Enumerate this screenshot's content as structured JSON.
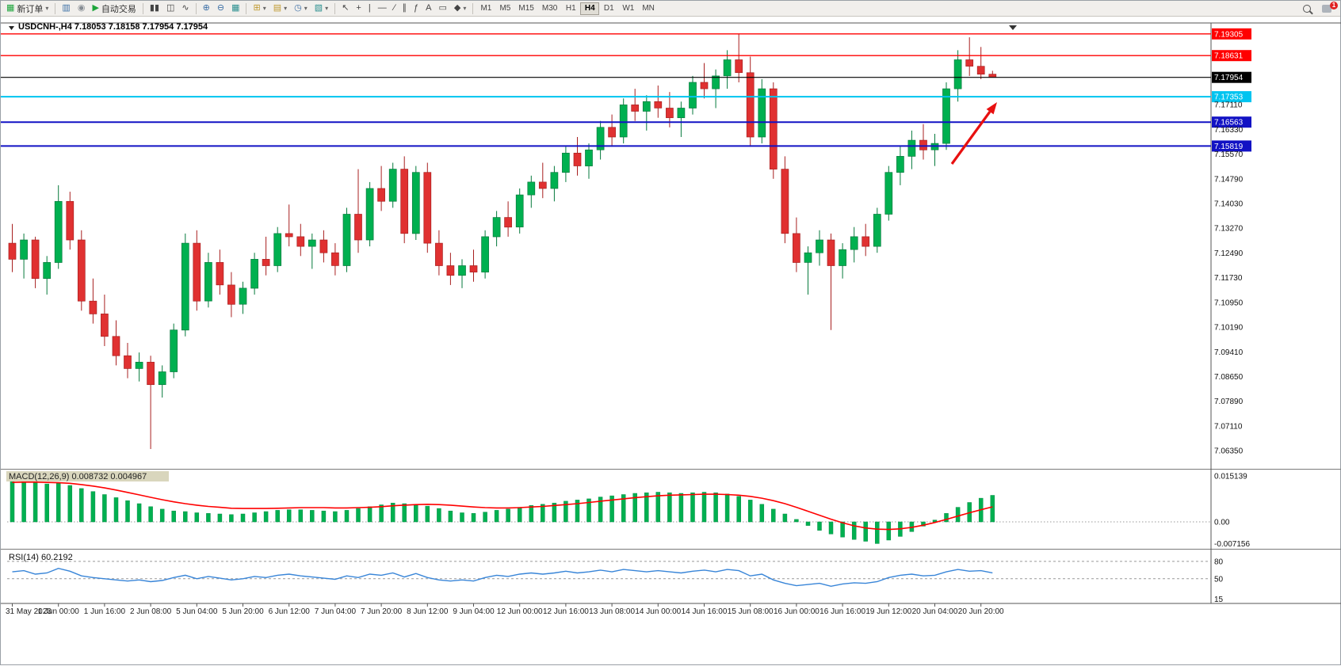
{
  "toolbar": {
    "new_order": "新订单",
    "autotrading": "自动交易",
    "timeframes": [
      "M1",
      "M5",
      "M15",
      "M30",
      "H1",
      "H4",
      "D1",
      "W1",
      "MN"
    ],
    "active_timeframe": "H4",
    "notification_count": "1"
  },
  "icons": {
    "caret": "▾",
    "new_order": "▦",
    "chart_window": "▥",
    "sound": "◉",
    "play": "▶",
    "bars": "▮▮",
    "candles": "◫",
    "linechart": "∿",
    "zoom_in": "⊕",
    "zoom_out": "⊖",
    "tile": "▦",
    "new_chart": "⊞",
    "profiles": "▤",
    "clock": "◷",
    "template": "▧",
    "cursor": "↖",
    "crosshair": "+",
    "vline": "|",
    "hline": "—",
    "trendline": "∕",
    "channel": "∥",
    "fibo": "ƒ",
    "text_tool": "A",
    "label_tool": "▭",
    "shapes": "◆"
  },
  "chart": {
    "title": "USDCNH-,H4 7.18053 7.18158 7.17954 7.17954",
    "symbol": "USDCNH-",
    "period": "H4",
    "ohlc": {
      "open": "7.18053",
      "high": "7.18158",
      "low": "7.17954",
      "close": "7.17954"
    },
    "current_price": "7.17954",
    "price_scale_labels": [
      "7.17110",
      "7.16330",
      "7.15570",
      "7.14790",
      "7.14030",
      "7.13270",
      "7.12490",
      "7.11730",
      "7.10950",
      "7.10190",
      "7.09410",
      "7.08650",
      "7.07890",
      "7.07110",
      "7.06350"
    ]
  },
  "macd_panel": {
    "label": "MACD(12,26,9) 0.008732 0.004967",
    "scale_labels": [
      "0.015139",
      "0.00",
      "-0.007156"
    ]
  },
  "rsi_panel": {
    "label": "RSI(14) 60.2192",
    "scale_labels": [
      "80",
      "50",
      "15"
    ]
  },
  "chart_data": {
    "type": "candlestick",
    "symbol": "USDCNH-",
    "timeframe": "H4",
    "title": "USDCNH-,H4 7.18053 7.18158 7.17954 7.17954",
    "price_range": [
      7.0586,
      7.1965
    ],
    "up_color": "#00b050",
    "down_color": "#e03131",
    "x_label_every_n_candles": 4,
    "x_labels": [
      "31 May 2023",
      "1 Jun 00:00",
      "1 Jun 16:00",
      "2 Jun 08:00",
      "5 Jun 04:00",
      "5 Jun 20:00",
      "6 Jun 12:00",
      "7 Jun 04:00",
      "7 Jun 20:00",
      "8 Jun 12:00",
      "9 Jun 04:00",
      "12 Jun 00:00",
      "12 Jun 16:00",
      "13 Jun 08:00",
      "14 Jun 00:00",
      "14 Jun 16:00",
      "15 Jun 08:00",
      "16 Jun 00:00",
      "16 Jun 16:00",
      "19 Jun 12:00",
      "20 Jun 04:00",
      "20 Jun 20:00"
    ],
    "horizontal_lines": [
      {
        "price": 7.19305,
        "label": "7.19305",
        "color": "#ff0000",
        "width": 1.4,
        "name": "resistance-line-upper"
      },
      {
        "price": 7.18631,
        "label": "7.18631",
        "color": "#ff0000",
        "width": 1.4,
        "name": "resistance-line-lower"
      },
      {
        "price": 7.17954,
        "label": "7.17954",
        "color": "#000000",
        "width": 1.1,
        "name": "last-price-line"
      },
      {
        "price": 7.17353,
        "label": "7.17353",
        "color": "#00c4f0",
        "width": 2.0,
        "name": "support-line-cyan"
      },
      {
        "price": 7.16563,
        "label": "7.16563",
        "color": "#1212c4",
        "width": 2.0,
        "name": "support-line-blue-upper"
      },
      {
        "price": 7.15819,
        "label": "7.15819",
        "color": "#1212c4",
        "width": 2.0,
        "name": "support-line-blue-lower"
      }
    ],
    "annotations": [
      {
        "type": "arrow",
        "color": "#e81010",
        "from_xy": [
          1200,
          206
        ],
        "to_xy": [
          1257,
          128
        ]
      }
    ],
    "candles": [
      [
        7.128,
        7.134,
        7.119,
        7.123
      ],
      [
        7.123,
        7.131,
        7.117,
        7.129
      ],
      [
        7.129,
        7.13,
        7.114,
        7.117
      ],
      [
        7.117,
        7.124,
        7.112,
        7.122
      ],
      [
        7.122,
        7.146,
        7.12,
        7.141
      ],
      [
        7.141,
        7.144,
        7.126,
        7.129
      ],
      [
        7.129,
        7.132,
        7.107,
        7.11
      ],
      [
        7.11,
        7.117,
        7.103,
        7.106
      ],
      [
        7.106,
        7.112,
        7.096,
        7.099
      ],
      [
        7.099,
        7.104,
        7.09,
        7.093
      ],
      [
        7.093,
        7.097,
        7.086,
        7.089
      ],
      [
        7.089,
        7.094,
        7.085,
        7.091
      ],
      [
        7.091,
        7.093,
        7.064,
        7.084
      ],
      [
        7.084,
        7.09,
        7.08,
        7.088
      ],
      [
        7.088,
        7.103,
        7.086,
        7.101
      ],
      [
        7.101,
        7.131,
        7.099,
        7.128
      ],
      [
        7.128,
        7.132,
        7.107,
        7.11
      ],
      [
        7.11,
        7.125,
        7.108,
        7.122
      ],
      [
        7.122,
        7.126,
        7.112,
        7.115
      ],
      [
        7.115,
        7.119,
        7.105,
        7.109
      ],
      [
        7.109,
        7.116,
        7.106,
        7.114
      ],
      [
        7.114,
        7.125,
        7.112,
        7.123
      ],
      [
        7.123,
        7.13,
        7.118,
        7.121
      ],
      [
        7.121,
        7.133,
        7.119,
        7.131
      ],
      [
        7.131,
        7.14,
        7.127,
        7.13
      ],
      [
        7.13,
        7.134,
        7.124,
        7.127
      ],
      [
        7.127,
        7.131,
        7.12,
        7.129
      ],
      [
        7.129,
        7.132,
        7.122,
        7.125
      ],
      [
        7.125,
        7.128,
        7.118,
        7.121
      ],
      [
        7.121,
        7.139,
        7.119,
        7.137
      ],
      [
        7.137,
        7.151,
        7.125,
        7.129
      ],
      [
        7.129,
        7.147,
        7.127,
        7.145
      ],
      [
        7.145,
        7.152,
        7.138,
        7.141
      ],
      [
        7.141,
        7.153,
        7.139,
        7.151
      ],
      [
        7.151,
        7.155,
        7.128,
        7.131
      ],
      [
        7.131,
        7.152,
        7.129,
        7.15
      ],
      [
        7.15,
        7.153,
        7.125,
        7.128
      ],
      [
        7.128,
        7.132,
        7.118,
        7.121
      ],
      [
        7.121,
        7.125,
        7.115,
        7.118
      ],
      [
        7.118,
        7.123,
        7.114,
        7.121
      ],
      [
        7.121,
        7.126,
        7.116,
        7.119
      ],
      [
        7.119,
        7.132,
        7.117,
        7.13
      ],
      [
        7.13,
        7.138,
        7.127,
        7.136
      ],
      [
        7.136,
        7.141,
        7.13,
        7.133
      ],
      [
        7.133,
        7.145,
        7.131,
        7.143
      ],
      [
        7.143,
        7.149,
        7.139,
        7.147
      ],
      [
        7.147,
        7.153,
        7.142,
        7.145
      ],
      [
        7.145,
        7.152,
        7.141,
        7.15
      ],
      [
        7.15,
        7.158,
        7.147,
        7.156
      ],
      [
        7.156,
        7.161,
        7.149,
        7.152
      ],
      [
        7.152,
        7.159,
        7.148,
        7.157
      ],
      [
        7.157,
        7.166,
        7.154,
        7.164
      ],
      [
        7.164,
        7.168,
        7.158,
        7.161
      ],
      [
        7.161,
        7.173,
        7.159,
        7.171
      ],
      [
        7.171,
        7.176,
        7.166,
        7.169
      ],
      [
        7.169,
        7.174,
        7.163,
        7.172
      ],
      [
        7.172,
        7.177,
        7.167,
        7.17
      ],
      [
        7.17,
        7.175,
        7.164,
        7.167
      ],
      [
        7.167,
        7.172,
        7.161,
        7.17
      ],
      [
        7.17,
        7.18,
        7.168,
        7.178
      ],
      [
        7.178,
        7.184,
        7.173,
        7.176
      ],
      [
        7.176,
        7.182,
        7.17,
        7.18
      ],
      [
        7.18,
        7.188,
        7.176,
        7.185
      ],
      [
        7.185,
        7.193,
        7.178,
        7.181
      ],
      [
        7.181,
        7.186,
        7.158,
        7.161
      ],
      [
        7.161,
        7.179,
        7.159,
        7.176
      ],
      [
        7.176,
        7.178,
        7.148,
        7.151
      ],
      [
        7.151,
        7.155,
        7.128,
        7.131
      ],
      [
        7.131,
        7.136,
        7.119,
        7.122
      ],
      [
        7.122,
        7.127,
        7.112,
        7.125
      ],
      [
        7.125,
        7.132,
        7.121,
        7.129
      ],
      [
        7.129,
        7.131,
        7.101,
        7.121
      ],
      [
        7.121,
        7.128,
        7.117,
        7.126
      ],
      [
        7.126,
        7.133,
        7.122,
        7.13
      ],
      [
        7.13,
        7.134,
        7.124,
        7.127
      ],
      [
        7.127,
        7.139,
        7.125,
        7.137
      ],
      [
        7.137,
        7.152,
        7.135,
        7.15
      ],
      [
        7.15,
        7.158,
        7.146,
        7.155
      ],
      [
        7.155,
        7.163,
        7.151,
        7.16
      ],
      [
        7.16,
        7.165,
        7.154,
        7.157
      ],
      [
        7.157,
        7.162,
        7.152,
        7.159
      ],
      [
        7.159,
        7.178,
        7.157,
        7.176
      ],
      [
        7.176,
        7.188,
        7.172,
        7.185
      ],
      [
        7.185,
        7.192,
        7.18,
        7.183
      ],
      [
        7.183,
        7.189,
        7.179,
        7.18053
      ],
      [
        7.18053,
        7.18158,
        7.17954,
        7.17954
      ]
    ],
    "indicators": [
      {
        "type": "macd",
        "fast": 12,
        "slow": 26,
        "signal_period": 9,
        "current_macd": 0.008732,
        "current_signal": 0.004967,
        "range": [
          -0.007156,
          0.015139
        ],
        "scale_labels": [
          "0.015139",
          "0.00",
          "-0.007156"
        ],
        "histogram": [
          0.014,
          0.0151,
          0.013,
          0.0125,
          0.0128,
          0.012,
          0.011,
          0.01,
          0.009,
          0.008,
          0.007,
          0.006,
          0.005,
          0.0042,
          0.0036,
          0.0034,
          0.003,
          0.0028,
          0.0026,
          0.0024,
          0.0026,
          0.003,
          0.0034,
          0.0038,
          0.004,
          0.004,
          0.0038,
          0.0036,
          0.0034,
          0.0038,
          0.0044,
          0.005,
          0.0056,
          0.0062,
          0.006,
          0.0058,
          0.0052,
          0.0044,
          0.0036,
          0.003,
          0.0028,
          0.0032,
          0.0038,
          0.0042,
          0.0048,
          0.0054,
          0.0058,
          0.0062,
          0.0068,
          0.0072,
          0.0076,
          0.0082,
          0.0086,
          0.009,
          0.0094,
          0.0096,
          0.0098,
          0.0096,
          0.0094,
          0.0096,
          0.0098,
          0.0096,
          0.0092,
          0.0084,
          0.0072,
          0.0058,
          0.0042,
          0.0026,
          0.0008,
          -0.0012,
          -0.0028,
          -0.004,
          -0.005,
          -0.0058,
          -0.0064,
          -0.00715,
          -0.006,
          -0.0048,
          -0.0032,
          -0.0014,
          0.0006,
          0.0028,
          0.0048,
          0.0064,
          0.0078,
          0.008732
        ],
        "signal": [
          0.013,
          0.0131,
          0.0131,
          0.013,
          0.0129,
          0.0127,
          0.0123,
          0.0118,
          0.0112,
          0.0105,
          0.0097,
          0.0089,
          0.0081,
          0.0073,
          0.0066,
          0.006,
          0.0055,
          0.0051,
          0.0048,
          0.0045,
          0.0044,
          0.0044,
          0.0044,
          0.0045,
          0.0046,
          0.0047,
          0.0047,
          0.0047,
          0.0046,
          0.0046,
          0.0047,
          0.0048,
          0.005,
          0.0053,
          0.0055,
          0.0057,
          0.0058,
          0.0057,
          0.0055,
          0.0052,
          0.0049,
          0.0047,
          0.0046,
          0.0046,
          0.0047,
          0.0049,
          0.0051,
          0.0054,
          0.0057,
          0.006,
          0.0064,
          0.0068,
          0.0072,
          0.0076,
          0.008,
          0.0083,
          0.0086,
          0.0088,
          0.0089,
          0.009,
          0.0091,
          0.0091,
          0.009,
          0.0088,
          0.0084,
          0.0078,
          0.007,
          0.006,
          0.0048,
          0.0035,
          0.0022,
          0.0009,
          -0.0003,
          -0.0013,
          -0.002,
          -0.0024,
          -0.0025,
          -0.0023,
          -0.0018,
          -0.0011,
          -0.0002,
          0.0008,
          0.0019,
          0.003,
          0.004,
          0.004967
        ]
      },
      {
        "type": "rsi",
        "period": 14,
        "current": 60.2192,
        "levels_dashed": [
          80,
          50
        ],
        "scale_labels": [
          "80",
          "50",
          "15"
        ],
        "values": [
          62,
          64,
          58,
          60,
          68,
          63,
          55,
          52,
          50,
          48,
          46,
          48,
          45,
          47,
          52,
          56,
          50,
          54,
          51,
          48,
          50,
          54,
          52,
          56,
          58,
          55,
          53,
          51,
          49,
          55,
          52,
          58,
          56,
          60,
          53,
          59,
          52,
          48,
          46,
          48,
          46,
          52,
          56,
          54,
          58,
          60,
          58,
          60,
          63,
          60,
          62,
          65,
          62,
          66,
          64,
          62,
          64,
          62,
          60,
          63,
          65,
          62,
          66,
          64,
          55,
          58,
          48,
          42,
          38,
          40,
          42,
          37,
          41,
          43,
          42,
          45,
          52,
          56,
          58,
          55,
          56,
          62,
          66,
          63,
          64,
          60.2
        ]
      }
    ]
  }
}
